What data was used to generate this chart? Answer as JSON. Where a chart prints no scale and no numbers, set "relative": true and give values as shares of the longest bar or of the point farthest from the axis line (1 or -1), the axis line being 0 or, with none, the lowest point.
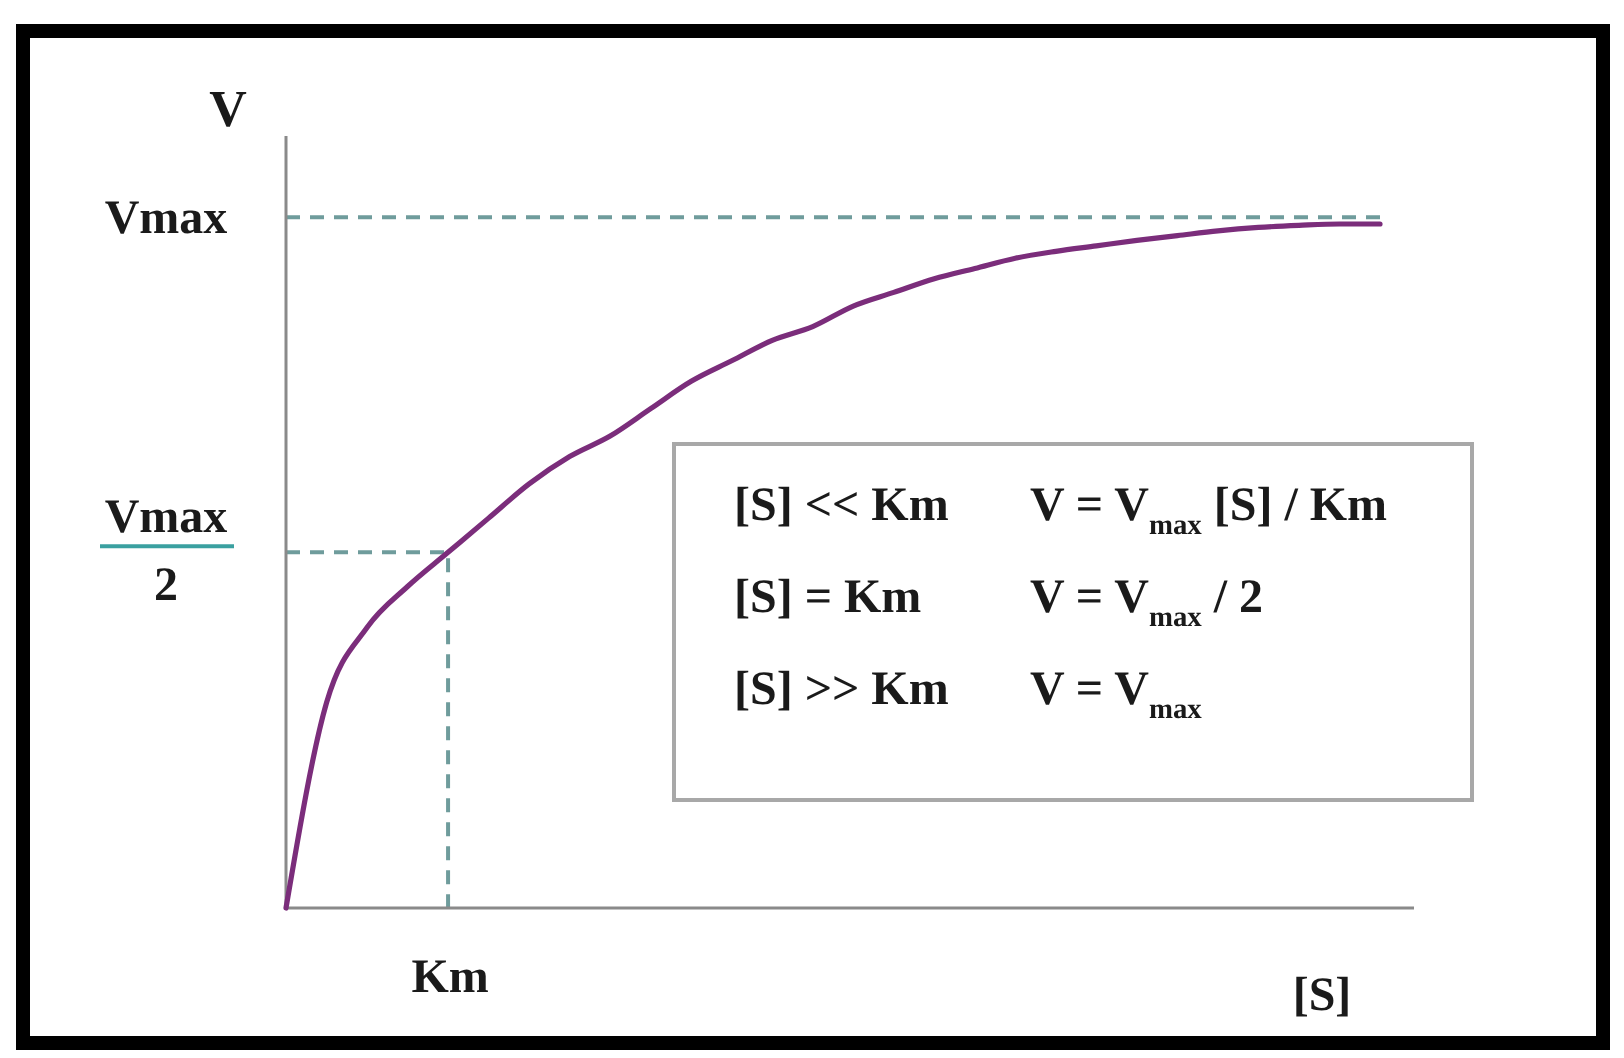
{
  "chart_data": {
    "type": "line",
    "relative": true,
    "xlabel": "[S]",
    "ylabel": "V",
    "categories": [
      null,
      null,
      null,
      null,
      null,
      null,
      null,
      null,
      null,
      null,
      null,
      null,
      null,
      null,
      null,
      null,
      null,
      null,
      null,
      null,
      null,
      null,
      null,
      null,
      null,
      null,
      null,
      null
    ],
    "series": [
      {
        "color": "#7b2d7b",
        "values": [
          0,
          0.3,
          0.41,
          0.47,
          0.52,
          0.57,
          0.62,
          0.66,
          0.69,
          0.73,
          0.77,
          0.8,
          0.83,
          0.85,
          0.88,
          0.9,
          0.92,
          0.935,
          0.95,
          0.96,
          0.968,
          0.976,
          0.983,
          0.99,
          0.995,
          0.998,
          1,
          1
        ]
      }
    ],
    "ref_lines": [
      {
        "axis": "y",
        "value": 1.01,
        "label": "Vmax",
        "color": "#6f9c9c",
        "line_style": "dashed"
      },
      {
        "axis": "y",
        "value": 0.52,
        "label": "Vmax\n2",
        "color": "#6f9c9c",
        "line_style": "dashed"
      }
    ],
    "annotations": [
      "Km",
      "[S] << Km",
      "V = V$_{max}$ [S] / Km",
      "[S] = Km",
      "V = V$_{max}$ / 2",
      "[S] >> Km",
      "V = V$_{max}$"
    ]
  }
}
